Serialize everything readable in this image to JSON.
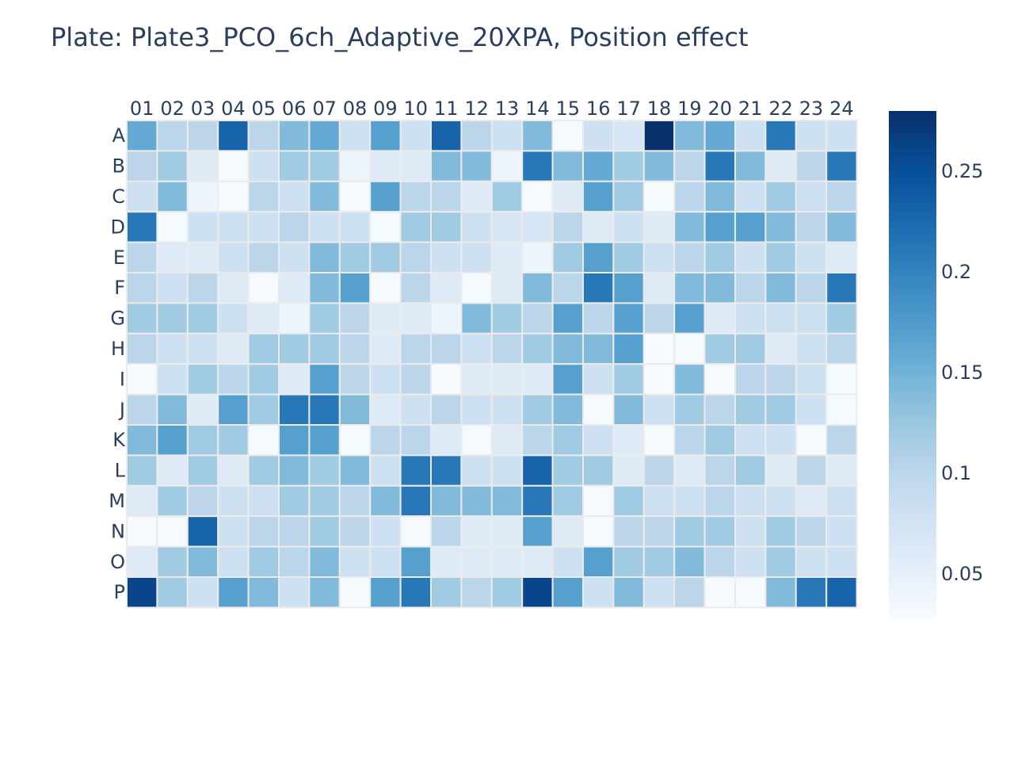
{
  "chart_data": {
    "type": "heatmap",
    "title": "Plate: Plate3_PCO_6ch_Adaptive_20XPA, Position effect",
    "columns": [
      "01",
      "02",
      "03",
      "04",
      "05",
      "06",
      "07",
      "08",
      "09",
      "10",
      "11",
      "12",
      "13",
      "14",
      "15",
      "16",
      "17",
      "18",
      "19",
      "20",
      "21",
      "22",
      "23",
      "24"
    ],
    "rows": [
      "A",
      "B",
      "C",
      "D",
      "E",
      "F",
      "G",
      "H",
      "I",
      "J",
      "K",
      "L",
      "M",
      "N",
      "O",
      "P"
    ],
    "colorscale": "Blues",
    "zmin": 0.028,
    "zmax": 0.28,
    "colorbar_ticks": [
      0.05,
      0.1,
      0.15,
      0.2,
      0.25
    ],
    "colorbar_tick_labels": [
      "0.05",
      "0.1",
      "0.15",
      "0.2",
      "0.25"
    ],
    "values": [
      [
        0.16,
        0.1,
        0.1,
        0.23,
        0.1,
        0.14,
        0.16,
        0.08,
        0.17,
        0.08,
        0.23,
        0.1,
        0.08,
        0.14,
        0.03,
        0.08,
        0.07,
        0.28,
        0.14,
        0.16,
        0.08,
        0.21,
        0.08,
        0.08
      ],
      [
        0.1,
        0.12,
        0.06,
        0.03,
        0.08,
        0.12,
        0.12,
        0.04,
        0.06,
        0.06,
        0.14,
        0.14,
        0.04,
        0.21,
        0.14,
        0.16,
        0.12,
        0.14,
        0.1,
        0.21,
        0.14,
        0.06,
        0.1,
        0.21
      ],
      [
        0.08,
        0.14,
        0.04,
        0.03,
        0.1,
        0.08,
        0.14,
        0.03,
        0.17,
        0.1,
        0.1,
        0.06,
        0.12,
        0.03,
        0.06,
        0.17,
        0.12,
        0.03,
        0.1,
        0.14,
        0.08,
        0.12,
        0.08,
        0.1
      ],
      [
        0.21,
        0.03,
        0.08,
        0.08,
        0.08,
        0.1,
        0.08,
        0.08,
        0.03,
        0.12,
        0.12,
        0.08,
        0.07,
        0.07,
        0.1,
        0.06,
        0.08,
        0.06,
        0.14,
        0.17,
        0.17,
        0.14,
        0.1,
        0.14
      ],
      [
        0.1,
        0.06,
        0.06,
        0.08,
        0.1,
        0.08,
        0.14,
        0.12,
        0.12,
        0.1,
        0.08,
        0.08,
        0.06,
        0.04,
        0.12,
        0.17,
        0.12,
        0.08,
        0.1,
        0.12,
        0.08,
        0.12,
        0.08,
        0.06
      ],
      [
        0.1,
        0.08,
        0.1,
        0.06,
        0.03,
        0.06,
        0.14,
        0.17,
        0.03,
        0.1,
        0.06,
        0.03,
        0.06,
        0.14,
        0.1,
        0.21,
        0.17,
        0.06,
        0.14,
        0.14,
        0.1,
        0.14,
        0.1,
        0.21
      ],
      [
        0.12,
        0.12,
        0.12,
        0.08,
        0.06,
        0.04,
        0.12,
        0.1,
        0.06,
        0.06,
        0.04,
        0.14,
        0.12,
        0.1,
        0.17,
        0.1,
        0.17,
        0.1,
        0.17,
        0.06,
        0.08,
        0.08,
        0.08,
        0.12
      ],
      [
        0.1,
        0.08,
        0.08,
        0.06,
        0.12,
        0.12,
        0.12,
        0.1,
        0.06,
        0.1,
        0.1,
        0.08,
        0.1,
        0.12,
        0.14,
        0.14,
        0.17,
        0.03,
        0.03,
        0.12,
        0.12,
        0.06,
        0.08,
        0.1
      ],
      [
        0.03,
        0.08,
        0.12,
        0.1,
        0.12,
        0.06,
        0.17,
        0.1,
        0.08,
        0.1,
        0.03,
        0.06,
        0.06,
        0.06,
        0.17,
        0.08,
        0.12,
        0.03,
        0.14,
        0.03,
        0.1,
        0.1,
        0.08,
        0.03
      ],
      [
        0.1,
        0.14,
        0.06,
        0.17,
        0.12,
        0.21,
        0.21,
        0.14,
        0.06,
        0.08,
        0.1,
        0.08,
        0.08,
        0.12,
        0.14,
        0.03,
        0.14,
        0.08,
        0.12,
        0.1,
        0.12,
        0.12,
        0.08,
        0.03
      ],
      [
        0.14,
        0.17,
        0.12,
        0.12,
        0.03,
        0.17,
        0.17,
        0.03,
        0.1,
        0.1,
        0.06,
        0.03,
        0.06,
        0.1,
        0.12,
        0.08,
        0.06,
        0.03,
        0.1,
        0.12,
        0.08,
        0.08,
        0.03,
        0.1
      ],
      [
        0.12,
        0.06,
        0.12,
        0.06,
        0.12,
        0.14,
        0.12,
        0.14,
        0.08,
        0.21,
        0.21,
        0.08,
        0.08,
        0.23,
        0.12,
        0.12,
        0.06,
        0.1,
        0.06,
        0.1,
        0.12,
        0.06,
        0.1,
        0.06
      ],
      [
        0.06,
        0.12,
        0.1,
        0.08,
        0.08,
        0.12,
        0.12,
        0.1,
        0.14,
        0.21,
        0.14,
        0.14,
        0.14,
        0.21,
        0.12,
        0.03,
        0.12,
        0.08,
        0.08,
        0.1,
        0.08,
        0.08,
        0.06,
        0.08
      ],
      [
        0.03,
        0.03,
        0.23,
        0.08,
        0.1,
        0.1,
        0.12,
        0.1,
        0.08,
        0.03,
        0.1,
        0.06,
        0.06,
        0.17,
        0.06,
        0.03,
        0.1,
        0.1,
        0.12,
        0.12,
        0.08,
        0.12,
        0.1,
        0.08
      ],
      [
        0.06,
        0.12,
        0.14,
        0.08,
        0.12,
        0.1,
        0.14,
        0.08,
        0.08,
        0.17,
        0.06,
        0.06,
        0.06,
        0.06,
        0.08,
        0.17,
        0.12,
        0.12,
        0.14,
        0.1,
        0.08,
        0.12,
        0.08,
        0.08
      ],
      [
        0.26,
        0.12,
        0.08,
        0.17,
        0.14,
        0.08,
        0.14,
        0.03,
        0.17,
        0.21,
        0.12,
        0.1,
        0.12,
        0.26,
        0.17,
        0.08,
        0.14,
        0.08,
        0.1,
        0.03,
        0.03,
        0.14,
        0.21,
        0.23
      ]
    ]
  }
}
